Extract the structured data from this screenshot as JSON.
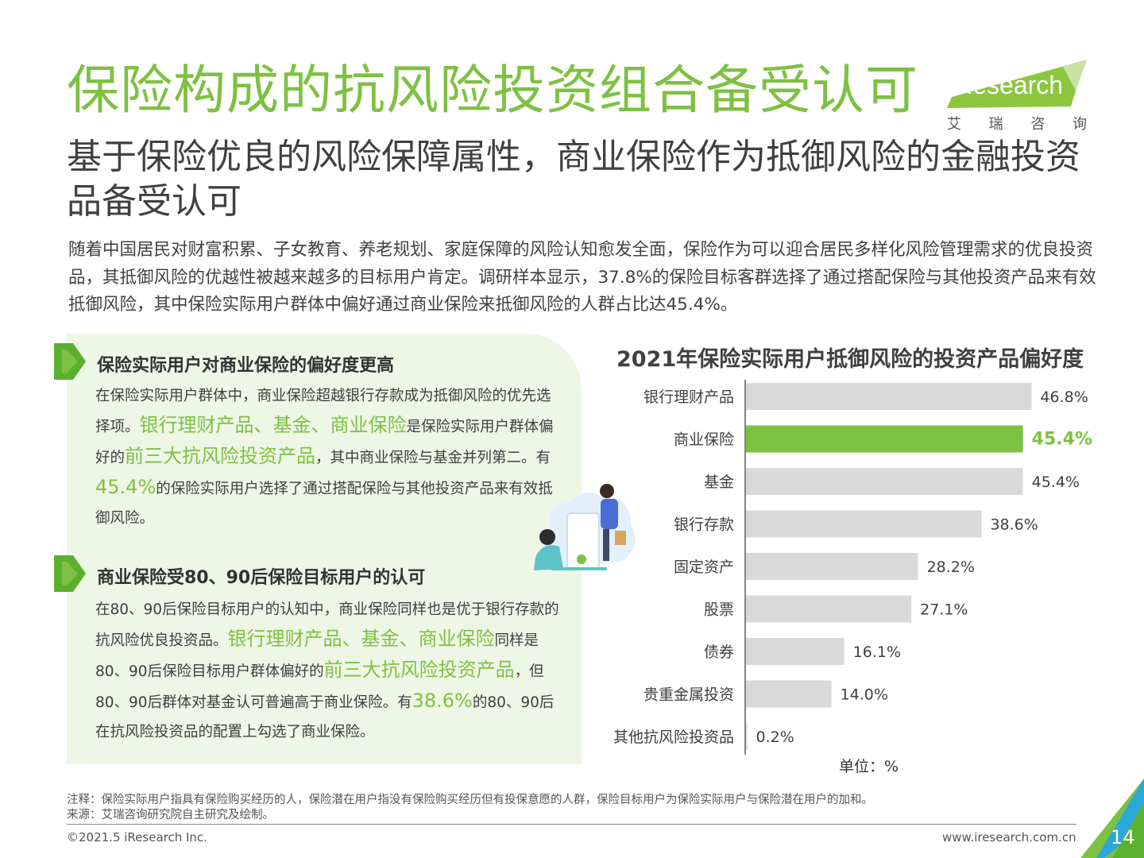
{
  "title": "保险构成的抗风险投资组合备受认可",
  "subtitle": "基于保险优良的风险保障属性，商业保险作为抵御风险的金融投资品备受认可",
  "intro": "随着中国居民对财富积累、子女教育、养老规划、家庭保障的风险认知愈发全面，保险作为可以迎合居民多样化风险管理需求的优良投资品，其抵御风险的优越性被越来越多的目标用户肯定。调研样本显示，37.8%的保险目标客群选择了通过搭配保险与其他投资产品来有效抵御风险，其中保险实际用户群体中偏好通过商业保险来抵御风险的人群占比达45.4%。",
  "logo": {
    "text": "iResearch",
    "cn": [
      "艾",
      "瑞",
      "咨",
      "询"
    ]
  },
  "section1": {
    "title": "保险实际用户对商业保险的偏好度更高",
    "t1": "在保险实际用户群体中，商业保险超越银行存款成为抵御风险的优先选择项。",
    "h1": "银行理财产品、基金、商业保险",
    "t2": "是保险实际用户群体偏好的",
    "h2": "前三大抗风险投资产品",
    "t3": "，其中商业保险与基金并列第二。有",
    "h3": "45.4%",
    "t4": "的保险实际用户选择了通过搭配保险与其他投资产品来有效抵御风险。"
  },
  "section2": {
    "title": "商业保险受80、90后保险目标用户的认可",
    "t1": "在80、90后保险目标用户的认知中，商业保险同样也是优于银行存款的抗风险优良投资品。",
    "h1": "银行理财产品、基金、商业保险",
    "t2": "同样是80、90后保险目标用户群体偏好的",
    "h2": "前三大抗风险投资产品",
    "t3": "，但80、90后群体对基金认可普遍高于商业保险。有",
    "h3": "38.6%",
    "t4": "的80、90后在抗风险投资品的配置上勾选了商业保险。"
  },
  "chart_data": {
    "type": "bar",
    "orientation": "horizontal",
    "title": "2021年保险实际用户抵御风险的投资产品偏好度",
    "categories": [
      "银行理财产品",
      "商业保险",
      "基金",
      "银行存款",
      "固定资产",
      "股票",
      "债券",
      "贵重金属投资",
      "其他抗风险投资品"
    ],
    "values": [
      46.8,
      45.4,
      45.4,
      38.6,
      28.2,
      27.1,
      16.1,
      14.0,
      0.2
    ],
    "labels": [
      "46.8%",
      "45.4%",
      "45.4%",
      "38.6%",
      "28.2%",
      "27.1%",
      "16.1%",
      "14.0%",
      "0.2%"
    ],
    "highlight_index": 1,
    "unit": "单位：%",
    "colors": {
      "bar": "#d9d9d9",
      "highlight": "#7dc142",
      "axis": "#595959"
    }
  },
  "footer": {
    "note": "注释：保险实际用户指具有保险购买经历的人，保险潜在用户指没有保险购买经历但有投保意愿的人群，保险目标用户为保险实际用户与保险潜在用户的加和。",
    "source": "来源：艾瑞咨询研究院自主研究及绘制。",
    "copyright": "©2021.5 iResearch Inc.",
    "site": "www.iresearch.com.cn",
    "page": "14"
  },
  "colors": {
    "accent": "#7dc142",
    "text": "#404040",
    "panel": "#eef6e6"
  }
}
